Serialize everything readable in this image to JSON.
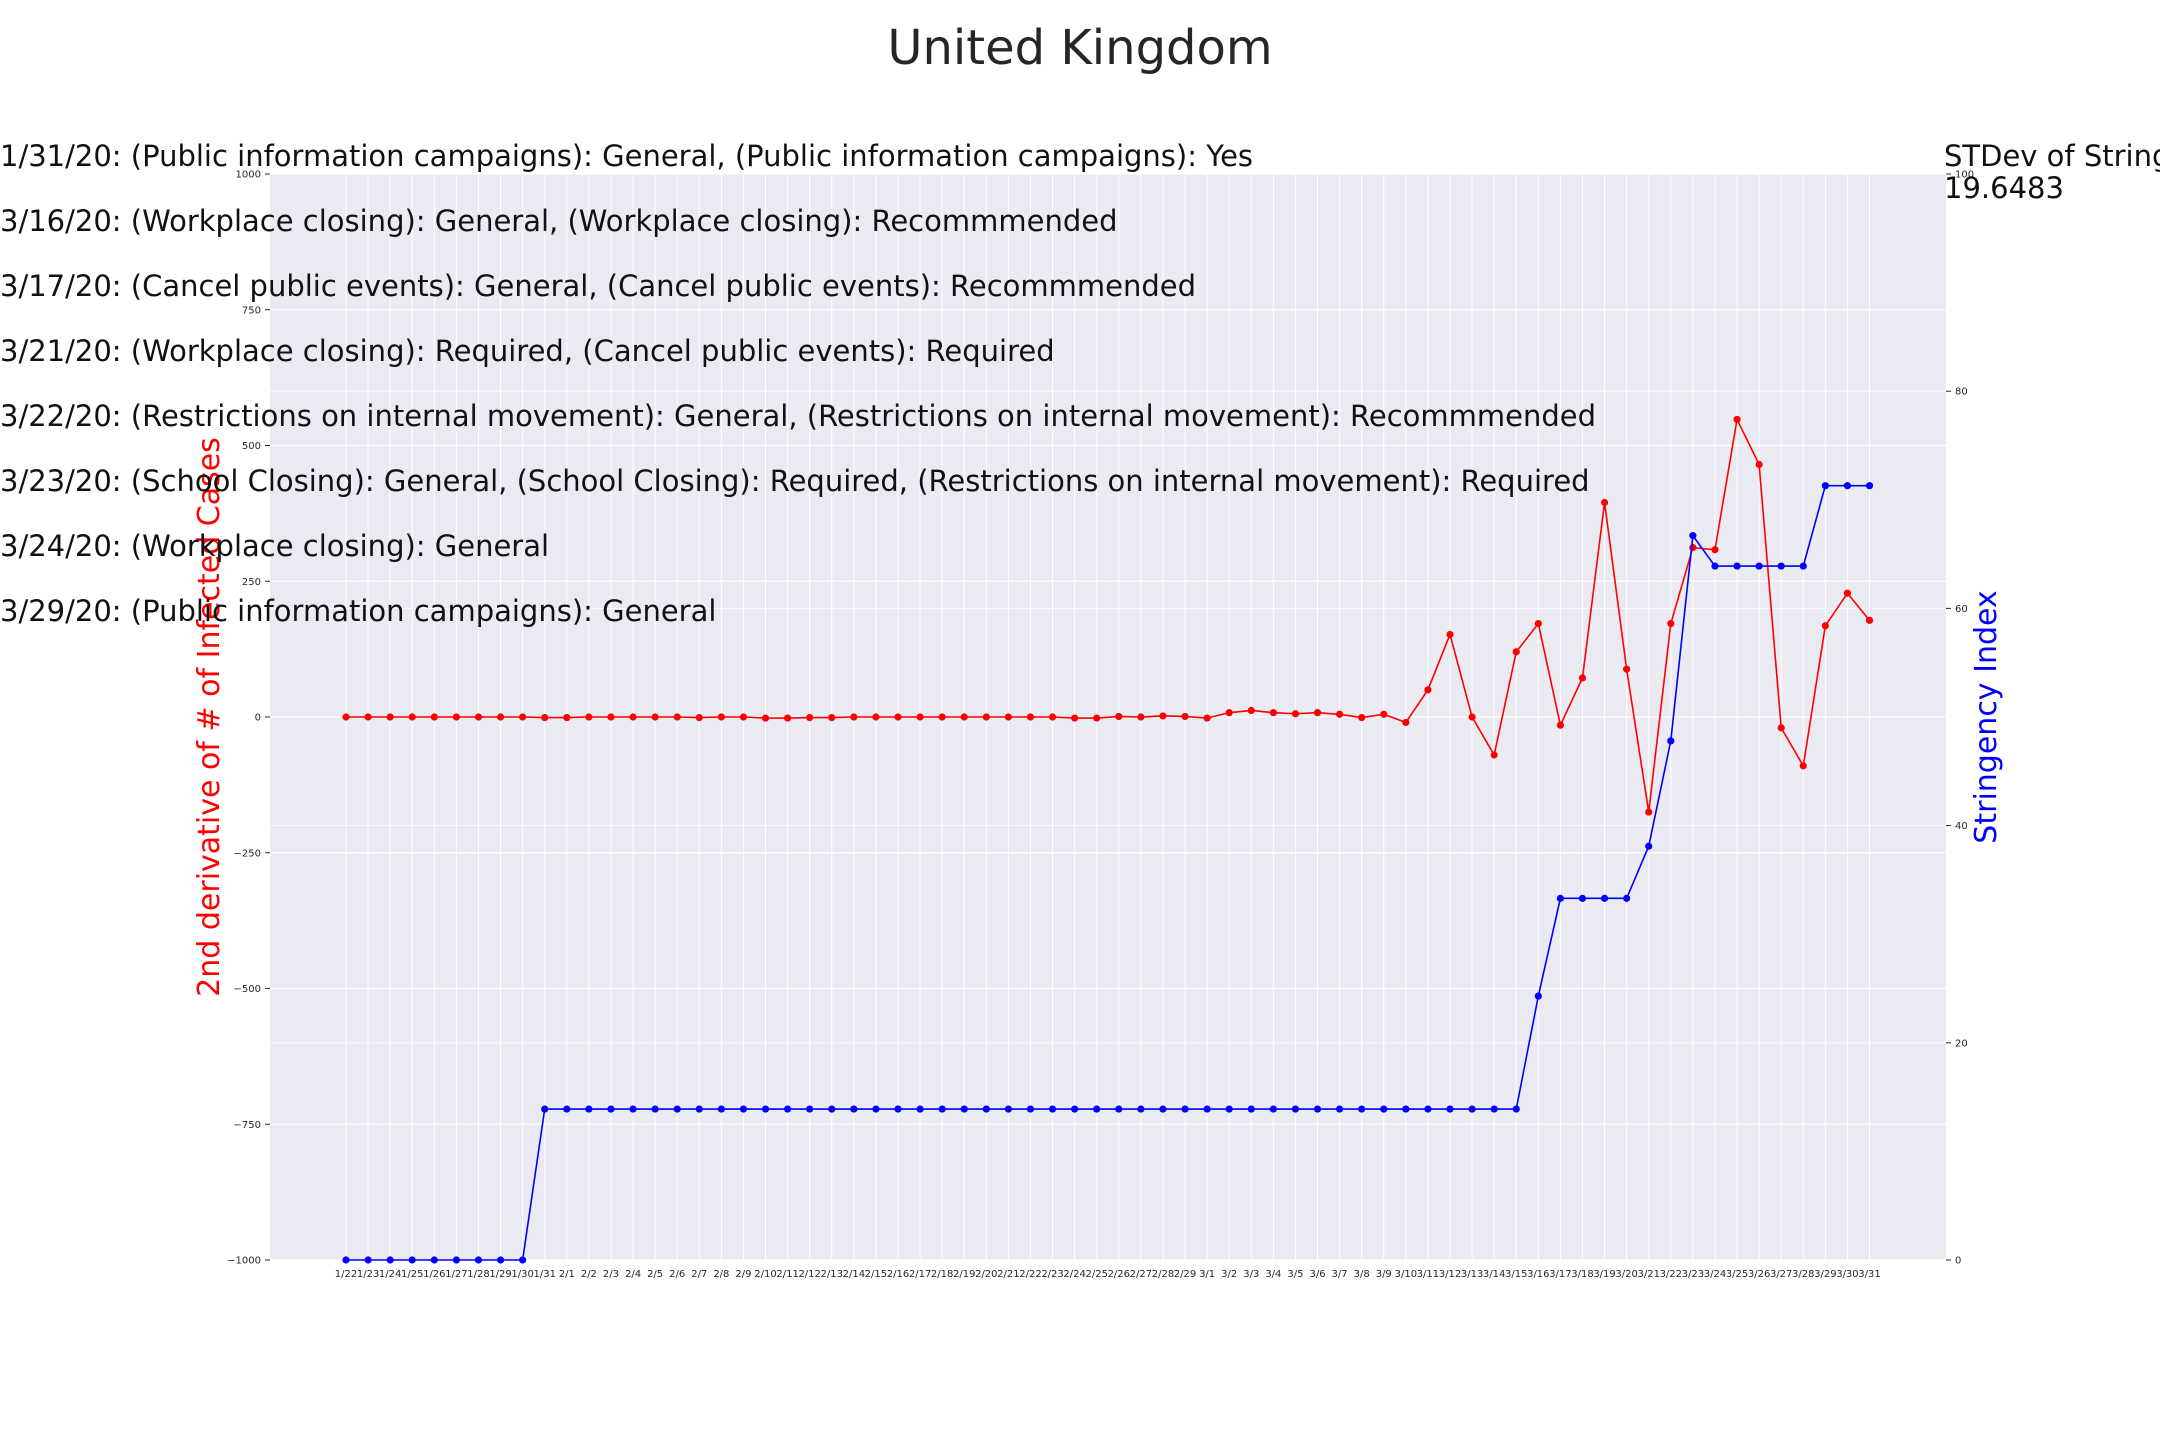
{
  "chart_data": {
    "type": "line",
    "title": "United Kingdom",
    "ylabel_left": "2nd derivative of # of Infected Cases",
    "ylabel_right": "Stringency Index",
    "ylim_left": [
      -1000,
      1000
    ],
    "yticks_left": [
      "1000",
      "750",
      "500",
      "250",
      "0",
      "−250",
      "−500",
      "−750",
      "−1000"
    ],
    "ylim_right": [
      0,
      100
    ],
    "yticks_right": [
      "100",
      "80",
      "60",
      "40",
      "20",
      "0"
    ],
    "grid": true,
    "x": [
      "1/22",
      "1/23",
      "1/24",
      "1/25",
      "1/26",
      "1/27",
      "1/28",
      "1/29",
      "1/30",
      "1/31",
      "2/1",
      "2/2",
      "2/3",
      "2/4",
      "2/5",
      "2/6",
      "2/7",
      "2/8",
      "2/9",
      "2/10",
      "2/11",
      "2/12",
      "2/13",
      "2/14",
      "2/15",
      "2/16",
      "2/17",
      "2/18",
      "2/19",
      "2/20",
      "2/21",
      "2/22",
      "2/23",
      "2/24",
      "2/25",
      "2/26",
      "2/27",
      "2/28",
      "2/29",
      "3/1",
      "3/2",
      "3/3",
      "3/4",
      "3/5",
      "3/6",
      "3/7",
      "3/8",
      "3/9",
      "3/10",
      "3/11",
      "3/12",
      "3/13",
      "3/14",
      "3/15",
      "3/16",
      "3/17",
      "3/18",
      "3/19",
      "3/20",
      "3/21",
      "3/22",
      "3/23",
      "3/24",
      "3/25",
      "3/26",
      "3/27",
      "3/28",
      "3/29",
      "3/30",
      "3/31"
    ],
    "series": [
      {
        "axis": "left",
        "color": "#ff0000",
        "values": [
          0,
          0,
          0,
          0,
          0,
          0,
          0,
          0,
          0,
          -1,
          -1,
          0,
          0,
          0,
          0,
          0,
          -1,
          0,
          0,
          -2,
          -2,
          -1,
          -1,
          0,
          0,
          0,
          0,
          0,
          0,
          0,
          0,
          0,
          0,
          -2,
          -2,
          1,
          0,
          2,
          1,
          -2,
          8,
          12,
          8,
          6,
          8,
          5,
          -1,
          5,
          -10,
          50,
          152,
          0,
          -70,
          120,
          172,
          -15,
          72,
          395,
          88,
          -175,
          172,
          312,
          308,
          548,
          465,
          -20,
          -90,
          168,
          228,
          178
        ]
      },
      {
        "axis": "right",
        "color": "#0000ff",
        "values": [
          0,
          0,
          0,
          0,
          0,
          0,
          0,
          0,
          0,
          13.9,
          13.9,
          13.9,
          13.9,
          13.9,
          13.9,
          13.9,
          13.9,
          13.9,
          13.9,
          13.9,
          13.9,
          13.9,
          13.9,
          13.9,
          13.9,
          13.9,
          13.9,
          13.9,
          13.9,
          13.9,
          13.9,
          13.9,
          13.9,
          13.9,
          13.9,
          13.9,
          13.9,
          13.9,
          13.9,
          13.9,
          13.9,
          13.9,
          13.9,
          13.9,
          13.9,
          13.9,
          13.9,
          13.9,
          13.9,
          13.9,
          13.9,
          13.9,
          13.9,
          13.9,
          24.3,
          33.3,
          33.3,
          33.3,
          33.3,
          38.1,
          47.8,
          66.7,
          63.9,
          63.9,
          63.9,
          63.9,
          63.9,
          71.3,
          71.3,
          71.3
        ]
      }
    ],
    "annotations": [
      "1/31/20: (Public information campaigns): General, (Public information campaigns): Yes",
      "3/16/20: (Workplace closing): General, (Workplace closing): Recommmended",
      "3/17/20: (Cancel public events): General, (Cancel public events): Recommmended",
      "3/21/20: (Workplace closing): Required, (Cancel public events): Required",
      "3/22/20: (Restrictions on internal movement): General, (Restrictions on internal movement): Recommmended",
      "3/23/20: (School Closing): General, (School Closing): Required, (Restrictions on internal movement): Required",
      "3/24/20: (Workplace closing): General",
      "3/29/20: (Public information campaigns): General"
    ],
    "stdev_label": "STDev of Stringency Index:",
    "stdev_value": "19.6483"
  }
}
